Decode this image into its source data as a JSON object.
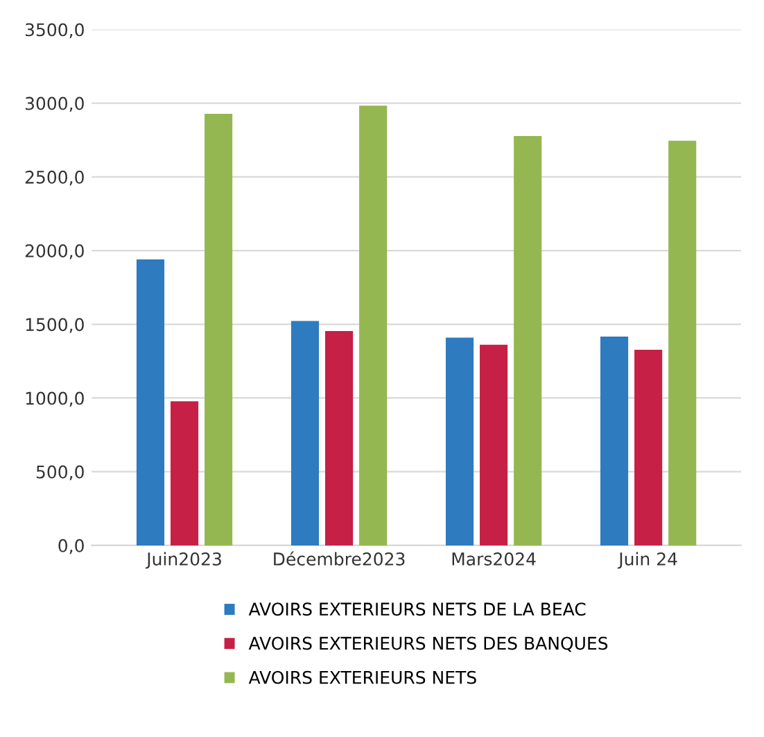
{
  "chart_data": {
    "type": "bar",
    "categories": [
      "Juin2023",
      "Décembre2023",
      "Mars2024",
      "Juin 24"
    ],
    "series": [
      {
        "name": "AVOIRS EXTERIEURS NETS DE LA BEAC",
        "color": "#2e7bbf",
        "values": [
          1940,
          1522,
          1409,
          1416
        ]
      },
      {
        "name": "AVOIRS EXTERIEURS NETS DES BANQUES",
        "color": "#c62047",
        "values": [
          977,
          1454,
          1361,
          1327
        ]
      },
      {
        "name": "AVOIRS EXTERIEURS NETS",
        "color": "#95b751",
        "values": [
          2928,
          2983,
          2777,
          2746
        ]
      }
    ],
    "ylim": [
      0,
      3500
    ],
    "yticks": [
      {
        "value": 0,
        "label": "0,0"
      },
      {
        "value": 500,
        "label": "500,0"
      },
      {
        "value": 1000,
        "label": "1000,0"
      },
      {
        "value": 1500,
        "label": "1500,0"
      },
      {
        "value": 2000,
        "label": "2000,0"
      },
      {
        "value": 2500,
        "label": "2500,0"
      },
      {
        "value": 3000,
        "label": "3000,0"
      },
      {
        "value": 3500,
        "label": "3500,0"
      }
    ],
    "grid": "y",
    "legend": "bottom"
  }
}
